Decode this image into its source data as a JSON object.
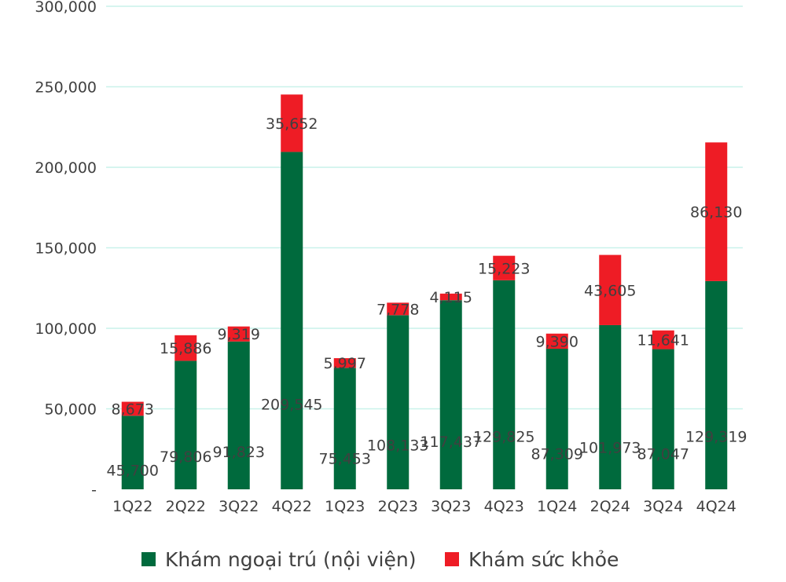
{
  "chart_data": {
    "type": "bar",
    "stacked": true,
    "title": "",
    "xlabel": "",
    "ylabel": "",
    "categories": [
      "1Q22",
      "2Q22",
      "3Q22",
      "4Q22",
      "1Q23",
      "2Q23",
      "3Q23",
      "4Q23",
      "1Q24",
      "2Q24",
      "3Q24",
      "4Q24"
    ],
    "series": [
      {
        "name": "Khám ngoại trú (nội viện)",
        "color": "#006a3d",
        "values": [
          45700,
          79806,
          91823,
          209545,
          75453,
          108133,
          117437,
          129825,
          87309,
          101973,
          87047,
          129319
        ],
        "labels": [
          "45,700",
          "79,806",
          "91,823",
          "209,545",
          "75,453",
          "108,133",
          "117,437",
          "129,825",
          "87,309",
          "101,973",
          "87,047",
          "129,319"
        ]
      },
      {
        "name": "Khám sức khỏe",
        "color": "#ee1c25",
        "values": [
          8673,
          15886,
          9319,
          35652,
          5997,
          7778,
          4115,
          15223,
          9390,
          43605,
          11641,
          86130
        ],
        "labels": [
          "8,673",
          "15,886",
          "9,319",
          "35,652",
          "5,997",
          "7,778",
          "4,115",
          "15,223",
          "9,390",
          "43,605",
          "11,641",
          "86,130"
        ]
      }
    ],
    "ylim": [
      0,
      300000
    ],
    "yticks": [
      0,
      50000,
      100000,
      150000,
      200000,
      250000,
      300000
    ],
    "ytick_labels": [
      "-",
      "50,000",
      "100,000",
      "150,000",
      "200,000",
      "250,000",
      "300,000"
    ],
    "grid": true,
    "legend_position": "bottom"
  }
}
